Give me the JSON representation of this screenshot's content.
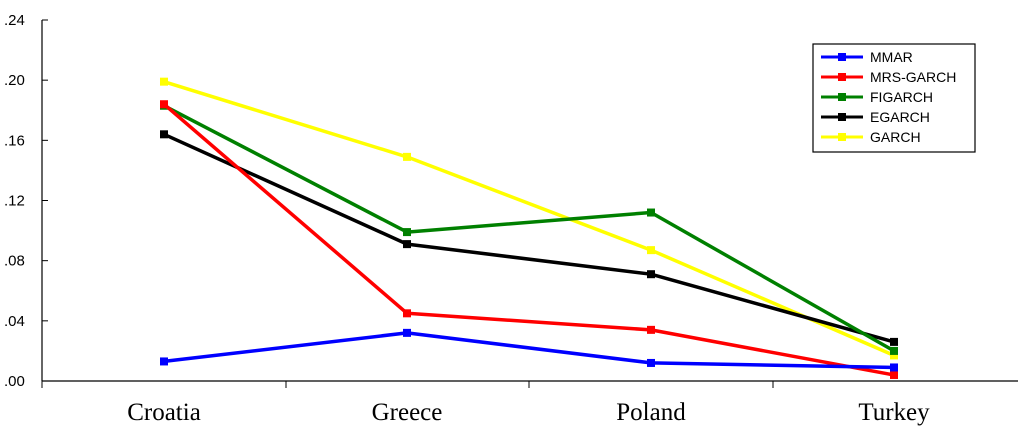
{
  "chart_data": {
    "type": "line",
    "title": "",
    "xlabel": "",
    "ylabel": "",
    "categories": [
      "Croatia",
      "Greece",
      "Poland",
      "Turkey"
    ],
    "ylim": [
      0,
      0.24
    ],
    "yticks": [
      0,
      0.04,
      0.08,
      0.12,
      0.16,
      0.2,
      0.24
    ],
    "ytick_labels": [
      ".00",
      ".04",
      ".08",
      ".12",
      ".16",
      ".20",
      ".24"
    ],
    "grid": false,
    "legend_position": "top-right",
    "series": [
      {
        "name": "MMAR",
        "color": "#0000ff",
        "values": [
          0.013,
          0.032,
          0.012,
          0.009
        ]
      },
      {
        "name": "MRS-GARCH",
        "color": "#ff0000",
        "values": [
          0.184,
          0.045,
          0.034,
          0.004
        ]
      },
      {
        "name": "FIGARCH",
        "color": "#008000",
        "values": [
          0.183,
          0.099,
          0.112,
          0.02
        ]
      },
      {
        "name": "EGARCH",
        "color": "#000000",
        "values": [
          0.164,
          0.091,
          0.071,
          0.026
        ]
      },
      {
        "name": "GARCH",
        "color": "#ffff00",
        "values": [
          0.199,
          0.149,
          0.087,
          0.017
        ]
      }
    ]
  }
}
